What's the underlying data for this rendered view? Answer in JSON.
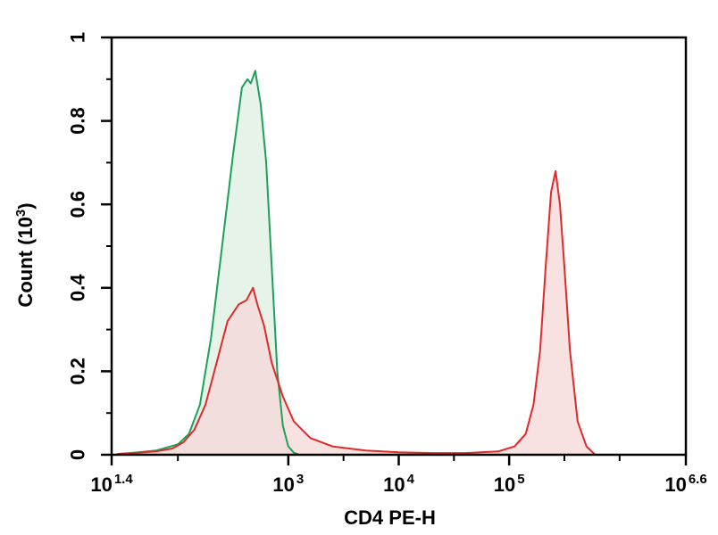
{
  "chart_data": {
    "type": "area",
    "title": "",
    "xlabel": "CD4 PE-H",
    "ylabel": "Count (10",
    "ylabel_exp": "3",
    "ylabel_suffix": ")",
    "x_scale": "log",
    "xlim_log10": [
      1.4,
      6.6
    ],
    "ylim": [
      0,
      1
    ],
    "grid": false,
    "legend": "none",
    "x_ticks": [
      {
        "base": "10",
        "exp": "1.4",
        "log10": 1.4
      },
      {
        "base": "10",
        "exp": "3",
        "log10": 3
      },
      {
        "base": "10",
        "exp": "4",
        "log10": 4
      },
      {
        "base": "10",
        "exp": "5",
        "log10": 5
      },
      {
        "base": "10",
        "exp": "6.6",
        "log10": 6.6
      }
    ],
    "y_ticks": [
      "0",
      "0.2",
      "0.4",
      "0.6",
      "0.8",
      "1"
    ],
    "series": [
      {
        "color": "#1fa05a",
        "fill": "#dcefe2",
        "points": [
          [
            1.45,
            0.002
          ],
          [
            1.6,
            0.005
          ],
          [
            1.8,
            0.01
          ],
          [
            2.0,
            0.025
          ],
          [
            2.1,
            0.05
          ],
          [
            2.2,
            0.12
          ],
          [
            2.3,
            0.28
          ],
          [
            2.4,
            0.5
          ],
          [
            2.5,
            0.72
          ],
          [
            2.58,
            0.88
          ],
          [
            2.63,
            0.9
          ],
          [
            2.66,
            0.89
          ],
          [
            2.7,
            0.92
          ],
          [
            2.75,
            0.84
          ],
          [
            2.8,
            0.7
          ],
          [
            2.85,
            0.45
          ],
          [
            2.9,
            0.2
          ],
          [
            2.95,
            0.07
          ],
          [
            3.0,
            0.02
          ],
          [
            3.05,
            0.005
          ],
          [
            3.1,
            0.0
          ]
        ]
      },
      {
        "color": "#e0292a",
        "fill": "#f5d7d7",
        "points": [
          [
            1.45,
            0.002
          ],
          [
            1.6,
            0.004
          ],
          [
            1.8,
            0.008
          ],
          [
            1.95,
            0.015
          ],
          [
            2.05,
            0.03
          ],
          [
            2.15,
            0.06
          ],
          [
            2.25,
            0.12
          ],
          [
            2.35,
            0.22
          ],
          [
            2.45,
            0.32
          ],
          [
            2.55,
            0.36
          ],
          [
            2.62,
            0.37
          ],
          [
            2.68,
            0.4
          ],
          [
            2.72,
            0.36
          ],
          [
            2.78,
            0.31
          ],
          [
            2.85,
            0.22
          ],
          [
            2.95,
            0.14
          ],
          [
            3.05,
            0.08
          ],
          [
            3.2,
            0.04
          ],
          [
            3.4,
            0.02
          ],
          [
            3.7,
            0.01
          ],
          [
            4.0,
            0.006
          ],
          [
            4.3,
            0.004
          ],
          [
            4.6,
            0.004
          ],
          [
            4.9,
            0.008
          ],
          [
            5.05,
            0.02
          ],
          [
            5.15,
            0.05
          ],
          [
            5.22,
            0.12
          ],
          [
            5.28,
            0.25
          ],
          [
            5.33,
            0.45
          ],
          [
            5.38,
            0.63
          ],
          [
            5.42,
            0.68
          ],
          [
            5.46,
            0.6
          ],
          [
            5.5,
            0.45
          ],
          [
            5.55,
            0.25
          ],
          [
            5.62,
            0.08
          ],
          [
            5.7,
            0.02
          ],
          [
            5.78,
            0.0
          ]
        ]
      }
    ]
  }
}
